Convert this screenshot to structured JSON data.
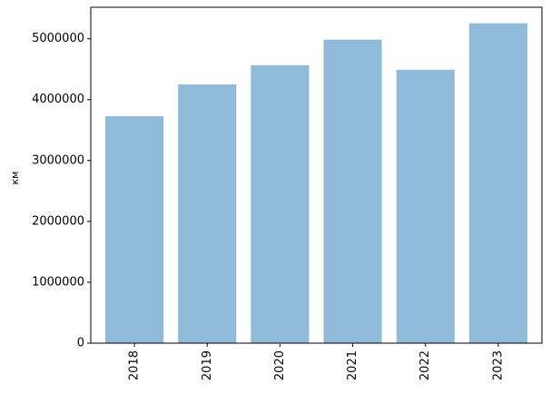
{
  "chart_data": {
    "type": "bar",
    "y_label": "км",
    "categories": [
      "2018",
      "2019",
      "2020",
      "2021",
      "2022",
      "2023"
    ],
    "values": [
      3728000,
      4250000,
      4566000,
      4985000,
      4491000,
      5254000
    ],
    "color": "#8fbbd9",
    "ylim": [
      0,
      5517000
    ],
    "yticks": [
      0,
      1000000,
      2000000,
      3000000,
      4000000,
      5000000
    ],
    "grid": false
  }
}
